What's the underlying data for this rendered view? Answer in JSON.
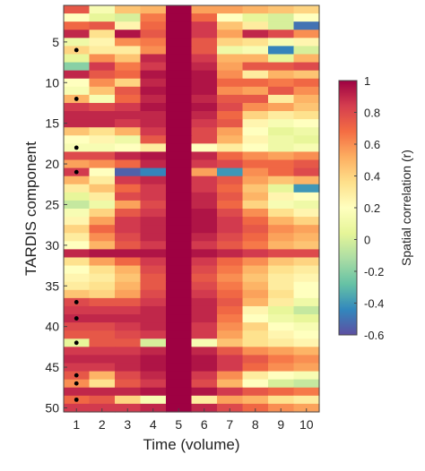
{
  "chart_data": {
    "type": "heatmap",
    "xlabel": "Time (volume)",
    "ylabel": "TARDIS component",
    "colorbar_label": "Spatial correlation (r)",
    "x_categories": [
      1,
      2,
      3,
      4,
      5,
      6,
      7,
      8,
      9,
      10
    ],
    "y_range": [
      1,
      50
    ],
    "y_ticks": [
      5,
      10,
      15,
      20,
      25,
      30,
      35,
      40,
      45,
      50
    ],
    "color_range": [
      -0.6,
      1
    ],
    "colorbar_ticks": [
      -0.6,
      -0.4,
      -0.2,
      0,
      0.2,
      0.4,
      0.6,
      0.8,
      1
    ],
    "colormap": "spectral",
    "colormap_stops": [
      "#5e4fa2",
      "#3288bd",
      "#66c2a5",
      "#abdda4",
      "#e6f598",
      "#ffffbf",
      "#fee08b",
      "#fdae61",
      "#f46d43",
      "#d53e4f",
      "#9e0142"
    ],
    "marker_color": "#000000",
    "marked_components": [
      6,
      12,
      18,
      21,
      37,
      39,
      42,
      46,
      47,
      49
    ],
    "marked_time": 1,
    "values": [
      [
        0.75,
        0.15,
        0.45,
        0.5,
        1.0,
        0.55,
        0.55,
        0.5,
        0.45,
        0.4
      ],
      [
        0.2,
        0.05,
        0.0,
        0.65,
        1.0,
        0.7,
        0.2,
        0.05,
        0.0,
        0.2
      ],
      [
        0.7,
        0.75,
        0.25,
        0.7,
        1.0,
        0.85,
        0.45,
        0.3,
        0.0,
        -0.5
      ],
      [
        0.9,
        0.35,
        0.95,
        0.75,
        1.0,
        0.85,
        0.55,
        0.9,
        0.8,
        0.6
      ],
      [
        0.1,
        0.25,
        0.6,
        0.65,
        1.0,
        0.75,
        0.4,
        0.35,
        0.15,
        0.25
      ],
      [
        0.4,
        0.3,
        0.3,
        0.6,
        1.0,
        0.75,
        0.1,
        0.15,
        -0.45,
        0.0
      ],
      [
        0.05,
        0.6,
        0.45,
        0.9,
        1.0,
        0.85,
        0.5,
        0.5,
        0.05,
        0.5
      ],
      [
        -0.2,
        0.85,
        0.65,
        0.85,
        1.0,
        0.9,
        0.55,
        0.75,
        0.75,
        0.8
      ],
      [
        0.9,
        0.75,
        0.7,
        0.95,
        1.0,
        0.95,
        0.6,
        0.3,
        0.5,
        0.45
      ],
      [
        0.2,
        0.6,
        0.4,
        0.9,
        1.0,
        0.95,
        0.7,
        0.7,
        0.65,
        0.7
      ],
      [
        0.15,
        0.45,
        0.75,
        0.95,
        1.0,
        0.95,
        0.6,
        0.55,
        0.75,
        0.6
      ],
      [
        0.5,
        0.15,
        0.7,
        0.9,
        1.0,
        0.9,
        0.75,
        0.75,
        0.3,
        0.5
      ],
      [
        0.85,
        0.8,
        0.85,
        0.95,
        1.0,
        0.95,
        0.8,
        0.6,
        0.55,
        0.45
      ],
      [
        0.9,
        0.9,
        0.9,
        0.9,
        1.0,
        0.9,
        0.7,
        0.4,
        0.3,
        0.35
      ],
      [
        0.9,
        0.9,
        0.85,
        0.9,
        1.0,
        0.85,
        0.75,
        0.25,
        0.15,
        0.2
      ],
      [
        0.45,
        0.35,
        0.5,
        0.85,
        1.0,
        0.8,
        0.55,
        0.2,
        0.05,
        0.1
      ],
      [
        0.2,
        0.25,
        0.1,
        0.75,
        1.0,
        0.8,
        0.5,
        0.25,
        0.1,
        0.05
      ],
      [
        0.15,
        0.15,
        0.2,
        0.3,
        1.0,
        0.2,
        0.3,
        0.2,
        0.1,
        0.15
      ],
      [
        0.8,
        0.8,
        0.9,
        0.95,
        1.0,
        0.9,
        0.7,
        0.6,
        0.55,
        0.6
      ],
      [
        0.55,
        0.6,
        0.7,
        0.9,
        1.0,
        0.85,
        0.8,
        0.7,
        0.7,
        0.75
      ],
      [
        0.85,
        0.2,
        -0.55,
        -0.45,
        1.0,
        0.55,
        -0.4,
        0.6,
        0.7,
        0.8
      ],
      [
        0.5,
        0.3,
        0.85,
        0.9,
        1.0,
        0.85,
        0.75,
        0.55,
        0.45,
        0.5
      ],
      [
        0.3,
        0.45,
        0.7,
        0.85,
        1.0,
        0.85,
        0.7,
        0.45,
        0.05,
        -0.4
      ],
      [
        0.05,
        0.3,
        0.8,
        0.85,
        1.0,
        0.9,
        0.75,
        0.5,
        0.25,
        0.2
      ],
      [
        -0.05,
        0.1,
        0.55,
        0.8,
        1.0,
        0.9,
        0.7,
        0.4,
        0.15,
        0.1
      ],
      [
        0.15,
        0.4,
        0.75,
        0.85,
        1.0,
        0.95,
        0.8,
        0.6,
        0.35,
        0.25
      ],
      [
        0.25,
        0.55,
        0.85,
        0.9,
        1.0,
        0.95,
        0.85,
        0.7,
        0.5,
        0.4
      ],
      [
        0.4,
        0.7,
        0.85,
        0.9,
        1.0,
        0.95,
        0.85,
        0.75,
        0.6,
        0.55
      ],
      [
        0.3,
        0.6,
        0.8,
        0.9,
        1.0,
        0.9,
        0.8,
        0.7,
        0.55,
        0.5
      ],
      [
        0.2,
        0.5,
        0.75,
        0.85,
        1.0,
        0.85,
        0.75,
        0.65,
        0.5,
        0.45
      ],
      [
        0.9,
        0.95,
        0.95,
        0.95,
        1.0,
        0.95,
        0.9,
        0.85,
        0.8,
        0.8
      ],
      [
        0.35,
        0.55,
        0.7,
        0.85,
        1.0,
        0.85,
        0.7,
        0.6,
        0.45,
        0.4
      ],
      [
        0.2,
        0.35,
        0.5,
        0.8,
        1.0,
        0.8,
        0.65,
        0.5,
        0.35,
        0.3
      ],
      [
        0.25,
        0.3,
        0.45,
        0.75,
        1.0,
        0.75,
        0.6,
        0.45,
        0.3,
        0.25
      ],
      [
        0.3,
        0.35,
        0.5,
        0.75,
        1.0,
        0.8,
        0.65,
        0.5,
        0.3,
        0.2
      ],
      [
        0.45,
        0.4,
        0.55,
        0.8,
        1.0,
        0.85,
        0.7,
        0.55,
        0.35,
        0.2
      ],
      [
        0.8,
        0.75,
        0.75,
        0.85,
        1.0,
        0.9,
        0.75,
        0.5,
        0.3,
        0.1
      ],
      [
        0.85,
        0.85,
        0.85,
        0.9,
        1.0,
        0.9,
        0.7,
        0.25,
        0.05,
        -0.05
      ],
      [
        0.9,
        0.9,
        0.9,
        0.9,
        1.0,
        0.9,
        0.65,
        0.2,
        0.1,
        0.05
      ],
      [
        0.8,
        0.8,
        0.85,
        0.9,
        1.0,
        0.85,
        0.6,
        0.4,
        0.2,
        0.15
      ],
      [
        0.75,
        0.75,
        0.8,
        0.85,
        1.0,
        0.85,
        0.55,
        0.35,
        0.25,
        0.2
      ],
      [
        0.05,
        0.75,
        0.75,
        0.0,
        1.0,
        0.15,
        0.45,
        0.35,
        0.3,
        0.25
      ],
      [
        0.85,
        0.85,
        0.85,
        0.9,
        1.0,
        0.9,
        0.75,
        0.6,
        0.55,
        0.5
      ],
      [
        0.9,
        0.9,
        0.9,
        0.95,
        1.0,
        0.95,
        0.85,
        0.75,
        0.65,
        0.6
      ],
      [
        0.85,
        0.85,
        0.9,
        0.95,
        1.0,
        0.95,
        0.85,
        0.7,
        0.6,
        0.55
      ],
      [
        0.75,
        0.5,
        0.8,
        0.9,
        1.0,
        0.85,
        0.6,
        0.3,
        0.2,
        0.15
      ],
      [
        0.6,
        0.35,
        0.75,
        0.85,
        1.0,
        0.8,
        0.5,
        0.2,
        0.0,
        -0.05
      ],
      [
        0.9,
        0.9,
        0.9,
        0.95,
        1.0,
        0.95,
        0.85,
        0.75,
        0.7,
        0.65
      ],
      [
        0.7,
        0.75,
        0.4,
        0.15,
        1.0,
        0.3,
        0.55,
        0.5,
        0.35,
        0.3
      ],
      [
        0.85,
        0.85,
        0.85,
        0.9,
        1.0,
        0.9,
        0.8,
        0.7,
        0.6,
        0.55
      ]
    ]
  }
}
